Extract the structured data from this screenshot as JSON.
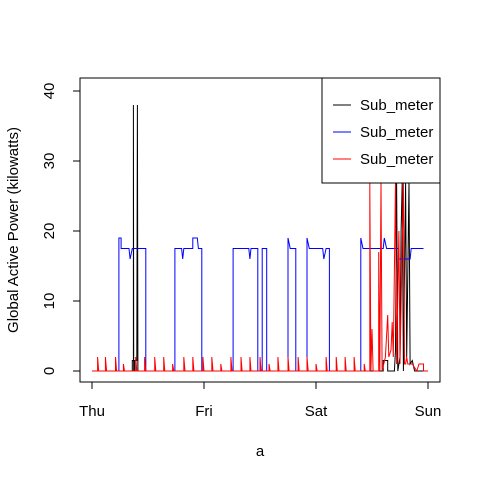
{
  "chart_data": {
    "type": "line",
    "title": "",
    "xlabel": "a",
    "ylabel": "Global Active Power (kilowatts)",
    "x_ticks": [
      {
        "label": "Thu",
        "value": 0
      },
      {
        "label": "Fri",
        "value": 1
      },
      {
        "label": "Sat",
        "value": 2
      },
      {
        "label": "Sun",
        "value": 3
      }
    ],
    "xlim": [
      0,
      3
    ],
    "y_ticks": [
      0,
      10,
      20,
      30,
      40
    ],
    "ylim": [
      0,
      40
    ],
    "legend_position": "top-right",
    "series": [
      {
        "name": "Sub_meter",
        "color": "#000000",
        "points": [
          [
            0,
            0
          ],
          [
            0.36,
            0
          ],
          [
            0.36,
            1.5
          ],
          [
            0.37,
            1.5
          ],
          [
            0.37,
            38
          ],
          [
            0.372,
            0
          ],
          [
            0.38,
            0
          ],
          [
            0.38,
            1.5
          ],
          [
            0.4,
            1.5
          ],
          [
            0.405,
            38
          ],
          [
            0.41,
            0
          ],
          [
            2.55,
            0
          ],
          [
            2.6,
            0
          ],
          [
            2.6,
            1.5
          ],
          [
            2.64,
            1.5
          ],
          [
            2.64,
            0
          ],
          [
            2.7,
            0
          ],
          [
            2.71,
            3
          ],
          [
            2.72,
            27
          ],
          [
            2.73,
            0
          ],
          [
            2.75,
            2
          ],
          [
            2.76,
            20
          ],
          [
            2.77,
            27
          ],
          [
            2.78,
            0
          ],
          [
            2.8,
            27
          ],
          [
            2.81,
            2
          ],
          [
            2.83,
            27
          ],
          [
            2.84,
            1
          ],
          [
            2.86,
            1.5
          ],
          [
            2.88,
            0
          ],
          [
            3,
            0
          ]
        ]
      },
      {
        "name": "Sub_meter",
        "color": "#0000ff",
        "points": [
          [
            0,
            0
          ],
          [
            0.24,
            0
          ],
          [
            0.24,
            19
          ],
          [
            0.26,
            19
          ],
          [
            0.26,
            17.5
          ],
          [
            0.33,
            17.5
          ],
          [
            0.34,
            16
          ],
          [
            0.36,
            17.5
          ],
          [
            0.48,
            17.5
          ],
          [
            0.48,
            0
          ],
          [
            0.74,
            0
          ],
          [
            0.74,
            17.5
          ],
          [
            0.8,
            17.5
          ],
          [
            0.81,
            16
          ],
          [
            0.82,
            17.5
          ],
          [
            0.9,
            17.5
          ],
          [
            0.9,
            19
          ],
          [
            0.94,
            19
          ],
          [
            0.95,
            17.5
          ],
          [
            0.98,
            17.5
          ],
          [
            0.98,
            0
          ],
          [
            1.26,
            0
          ],
          [
            1.26,
            17.5
          ],
          [
            1.4,
            17.5
          ],
          [
            1.41,
            16
          ],
          [
            1.42,
            17.5
          ],
          [
            1.48,
            17.5
          ],
          [
            1.48,
            0
          ],
          [
            1.52,
            0
          ],
          [
            1.52,
            17.5
          ],
          [
            1.56,
            17.5
          ],
          [
            1.56,
            0
          ],
          [
            1.75,
            0
          ],
          [
            1.75,
            19
          ],
          [
            1.77,
            17.5
          ],
          [
            1.82,
            17.5
          ],
          [
            1.82,
            0
          ],
          [
            1.92,
            0
          ],
          [
            1.92,
            19
          ],
          [
            1.94,
            17.5
          ],
          [
            2.06,
            17.5
          ],
          [
            2.07,
            16
          ],
          [
            2.09,
            17.5
          ],
          [
            2.12,
            17.5
          ],
          [
            2.12,
            0
          ],
          [
            2.4,
            0
          ],
          [
            2.4,
            19
          ],
          [
            2.42,
            17.5
          ],
          [
            2.6,
            17.5
          ],
          [
            2.61,
            19
          ],
          [
            2.63,
            17.5
          ],
          [
            2.74,
            17.5
          ],
          [
            2.74,
            16
          ],
          [
            2.84,
            16
          ],
          [
            2.85,
            17.5
          ],
          [
            2.96,
            17.5
          ]
        ]
      },
      {
        "name": "Sub_meter",
        "color": "#ff0000",
        "points": [
          [
            0,
            0
          ],
          [
            0.05,
            0
          ],
          [
            0.05,
            2
          ],
          [
            0.06,
            0
          ],
          [
            0.12,
            0
          ],
          [
            0.12,
            2
          ],
          [
            0.13,
            0
          ],
          [
            0.21,
            0
          ],
          [
            0.21,
            2
          ],
          [
            0.22,
            0
          ],
          [
            0.28,
            0
          ],
          [
            0.28,
            1
          ],
          [
            0.29,
            0
          ],
          [
            0.39,
            0
          ],
          [
            0.39,
            2
          ],
          [
            0.4,
            0
          ],
          [
            0.47,
            0
          ],
          [
            0.47,
            2
          ],
          [
            0.48,
            0
          ],
          [
            0.56,
            0
          ],
          [
            0.56,
            2
          ],
          [
            0.57,
            0
          ],
          [
            0.64,
            0
          ],
          [
            0.64,
            2
          ],
          [
            0.65,
            0
          ],
          [
            0.72,
            0
          ],
          [
            0.72,
            1
          ],
          [
            0.73,
            0
          ],
          [
            0.82,
            0
          ],
          [
            0.82,
            2
          ],
          [
            0.83,
            0
          ],
          [
            0.9,
            0
          ],
          [
            0.9,
            2
          ],
          [
            0.91,
            0
          ],
          [
            0.99,
            0
          ],
          [
            0.99,
            2
          ],
          [
            1.0,
            0
          ],
          [
            1.07,
            0
          ],
          [
            1.07,
            2
          ],
          [
            1.08,
            0
          ],
          [
            1.15,
            0
          ],
          [
            1.15,
            1
          ],
          [
            1.16,
            0
          ],
          [
            1.24,
            0
          ],
          [
            1.24,
            2
          ],
          [
            1.25,
            0
          ],
          [
            1.33,
            0
          ],
          [
            1.33,
            2
          ],
          [
            1.34,
            0
          ],
          [
            1.41,
            0
          ],
          [
            1.41,
            2
          ],
          [
            1.42,
            0
          ],
          [
            1.5,
            0
          ],
          [
            1.5,
            2
          ],
          [
            1.51,
            0
          ],
          [
            1.58,
            0
          ],
          [
            1.58,
            1
          ],
          [
            1.59,
            0
          ],
          [
            1.66,
            0
          ],
          [
            1.66,
            2
          ],
          [
            1.67,
            0
          ],
          [
            1.75,
            0
          ],
          [
            1.75,
            2
          ],
          [
            1.76,
            0
          ],
          [
            1.84,
            0
          ],
          [
            1.84,
            2
          ],
          [
            1.85,
            0
          ],
          [
            1.92,
            0
          ],
          [
            1.92,
            2
          ],
          [
            1.93,
            0
          ],
          [
            2.0,
            0
          ],
          [
            2.0,
            1
          ],
          [
            2.01,
            0
          ],
          [
            2.09,
            0
          ],
          [
            2.09,
            2
          ],
          [
            2.1,
            0
          ],
          [
            2.18,
            0
          ],
          [
            2.18,
            2
          ],
          [
            2.19,
            0
          ],
          [
            2.26,
            0
          ],
          [
            2.26,
            2
          ],
          [
            2.27,
            0
          ],
          [
            2.34,
            0
          ],
          [
            2.34,
            2
          ],
          [
            2.35,
            0
          ],
          [
            2.43,
            0
          ],
          [
            2.43,
            1
          ],
          [
            2.44,
            0
          ],
          [
            2.48,
            0
          ],
          [
            2.48,
            27
          ],
          [
            2.49,
            0
          ],
          [
            2.5,
            6
          ],
          [
            2.51,
            0
          ],
          [
            2.56,
            0
          ],
          [
            2.56,
            17
          ],
          [
            2.57,
            0
          ],
          [
            2.58,
            27
          ],
          [
            2.59,
            0
          ],
          [
            2.62,
            2
          ],
          [
            2.64,
            8
          ],
          [
            2.65,
            2
          ],
          [
            2.67,
            3
          ],
          [
            2.68,
            7
          ],
          [
            2.69,
            2
          ],
          [
            2.71,
            27
          ],
          [
            2.72,
            1
          ],
          [
            2.74,
            20
          ],
          [
            2.75,
            1
          ],
          [
            2.78,
            27
          ],
          [
            2.79,
            1
          ],
          [
            2.8,
            1
          ],
          [
            2.81,
            2
          ],
          [
            2.82,
            1
          ],
          [
            2.86,
            1
          ],
          [
            2.9,
            0
          ],
          [
            2.92,
            1
          ],
          [
            2.96,
            1
          ],
          [
            2.96,
            0
          ],
          [
            3,
            0
          ]
        ]
      }
    ]
  }
}
